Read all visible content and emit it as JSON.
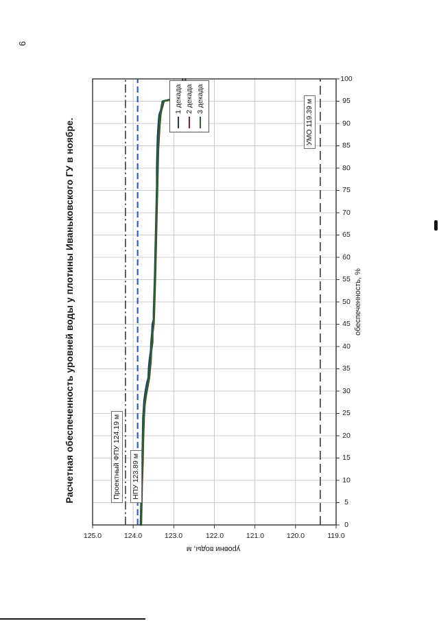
{
  "page": {
    "number": "6"
  },
  "chart_data": {
    "type": "line",
    "title": "Расчетная обеспеченность уровней воды у плотины Иваньковского ГУ в ноябре.",
    "xlabel": "обеспеченность, %",
    "ylabel": "уровни воды, м",
    "xlim": [
      0,
      100
    ],
    "ylim": [
      119,
      125
    ],
    "grid": true,
    "legend_position": "right-inside",
    "x_ticks": [
      "0",
      "5",
      "10",
      "15",
      "20",
      "25",
      "30",
      "35",
      "40",
      "45",
      "50",
      "55",
      "60",
      "65",
      "70",
      "75",
      "80",
      "85",
      "90",
      "95",
      "100"
    ],
    "y_ticks": [
      "125.0",
      "124.0",
      "123.0",
      "122.0",
      "121.0",
      "120.0",
      "119.0"
    ],
    "ref_lines": [
      {
        "label": "Проектный ФПУ 124.19 м",
        "value": 124.19,
        "color": "#3a3a3a",
        "dash": "dash-dot"
      },
      {
        "label": "НПУ 123.89 м",
        "value": 123.89,
        "color": "#2e5fc3",
        "dash": "dash"
      },
      {
        "label": "УМО 119.39 м",
        "value": 119.39,
        "color": "#3a3a3a",
        "dash": "long-dash"
      }
    ],
    "series": [
      {
        "name": "1 декада",
        "color": "#1f3578",
        "points": [
          [
            0,
            123.82
          ],
          [
            4,
            123.81
          ],
          [
            9,
            123.8
          ],
          [
            14,
            123.78
          ],
          [
            19,
            123.77
          ],
          [
            24,
            123.76
          ],
          [
            28,
            123.73
          ],
          [
            30,
            123.7
          ],
          [
            32,
            123.66
          ],
          [
            33,
            123.63
          ],
          [
            35,
            123.62
          ],
          [
            37,
            123.6
          ],
          [
            39,
            123.57
          ],
          [
            41,
            123.56
          ],
          [
            43,
            123.54
          ],
          [
            45,
            123.53
          ],
          [
            46,
            123.5
          ],
          [
            48,
            123.5
          ],
          [
            50,
            123.49
          ],
          [
            53,
            123.48
          ],
          [
            56,
            123.47
          ],
          [
            60,
            123.46
          ],
          [
            64,
            123.45
          ],
          [
            68,
            123.44
          ],
          [
            72,
            123.43
          ],
          [
            76,
            123.42
          ],
          [
            80,
            123.42
          ],
          [
            84,
            123.41
          ],
          [
            87,
            123.4
          ],
          [
            90,
            123.38
          ],
          [
            92,
            123.36
          ],
          [
            93,
            123.32
          ],
          [
            94,
            123.3
          ],
          [
            95,
            123.28
          ],
          [
            95.5,
            123.05
          ],
          [
            96,
            122.88
          ],
          [
            96.5,
            122.84
          ],
          [
            97,
            122.82
          ],
          [
            98,
            122.8
          ],
          [
            99,
            122.79
          ],
          [
            100,
            122.78
          ]
        ]
      },
      {
        "name": "2 декада",
        "color": "#8b1d1d",
        "points": [
          [
            0,
            123.8
          ],
          [
            4,
            123.79
          ],
          [
            9,
            123.78
          ],
          [
            14,
            123.76
          ],
          [
            19,
            123.75
          ],
          [
            24,
            123.73
          ],
          [
            27,
            123.71
          ],
          [
            29,
            123.68
          ],
          [
            31,
            123.64
          ],
          [
            33,
            123.6
          ],
          [
            35,
            123.58
          ],
          [
            37,
            123.56
          ],
          [
            39,
            123.55
          ],
          [
            41,
            123.52
          ],
          [
            43,
            123.52
          ],
          [
            45,
            123.49
          ],
          [
            47,
            123.48
          ],
          [
            50,
            123.47
          ],
          [
            53,
            123.46
          ],
          [
            56,
            123.45
          ],
          [
            60,
            123.44
          ],
          [
            64,
            123.43
          ],
          [
            68,
            123.42
          ],
          [
            72,
            123.41
          ],
          [
            76,
            123.4
          ],
          [
            80,
            123.39
          ],
          [
            84,
            123.38
          ],
          [
            87,
            123.36
          ],
          [
            90,
            123.34
          ],
          [
            92,
            123.32
          ],
          [
            93,
            123.3
          ],
          [
            94,
            123.27
          ],
          [
            95,
            123.24
          ],
          [
            95.5,
            122.98
          ],
          [
            96,
            122.86
          ],
          [
            96.5,
            122.78
          ],
          [
            97.5,
            122.74
          ],
          [
            98.5,
            122.72
          ],
          [
            100,
            122.71
          ]
        ]
      },
      {
        "name": "3 декада",
        "color": "#1d6b2a",
        "points": [
          [
            0,
            123.81
          ],
          [
            4,
            123.8
          ],
          [
            9,
            123.79
          ],
          [
            14,
            123.77
          ],
          [
            19,
            123.76
          ],
          [
            24,
            123.74
          ],
          [
            27,
            123.72
          ],
          [
            29,
            123.69
          ],
          [
            31,
            123.65
          ],
          [
            33,
            123.61
          ],
          [
            35,
            123.59
          ],
          [
            37,
            123.57
          ],
          [
            39,
            123.55
          ],
          [
            41,
            123.54
          ],
          [
            43,
            123.53
          ],
          [
            45,
            123.5
          ],
          [
            47,
            123.49
          ],
          [
            50,
            123.48
          ],
          [
            53,
            123.47
          ],
          [
            56,
            123.46
          ],
          [
            60,
            123.45
          ],
          [
            64,
            123.44
          ],
          [
            68,
            123.43
          ],
          [
            72,
            123.42
          ],
          [
            76,
            123.41
          ],
          [
            80,
            123.4
          ],
          [
            84,
            123.39
          ],
          [
            87,
            123.37
          ],
          [
            90,
            123.35
          ],
          [
            92,
            123.33
          ],
          [
            93,
            123.31
          ],
          [
            94,
            123.29
          ],
          [
            95,
            123.26
          ],
          [
            95.5,
            123.02
          ],
          [
            96,
            122.84
          ],
          [
            96.3,
            122.72
          ],
          [
            96.8,
            122.64
          ],
          [
            97.5,
            122.62
          ],
          [
            98.2,
            122.66
          ],
          [
            99,
            122.7
          ],
          [
            100,
            122.72
          ]
        ]
      }
    ]
  }
}
